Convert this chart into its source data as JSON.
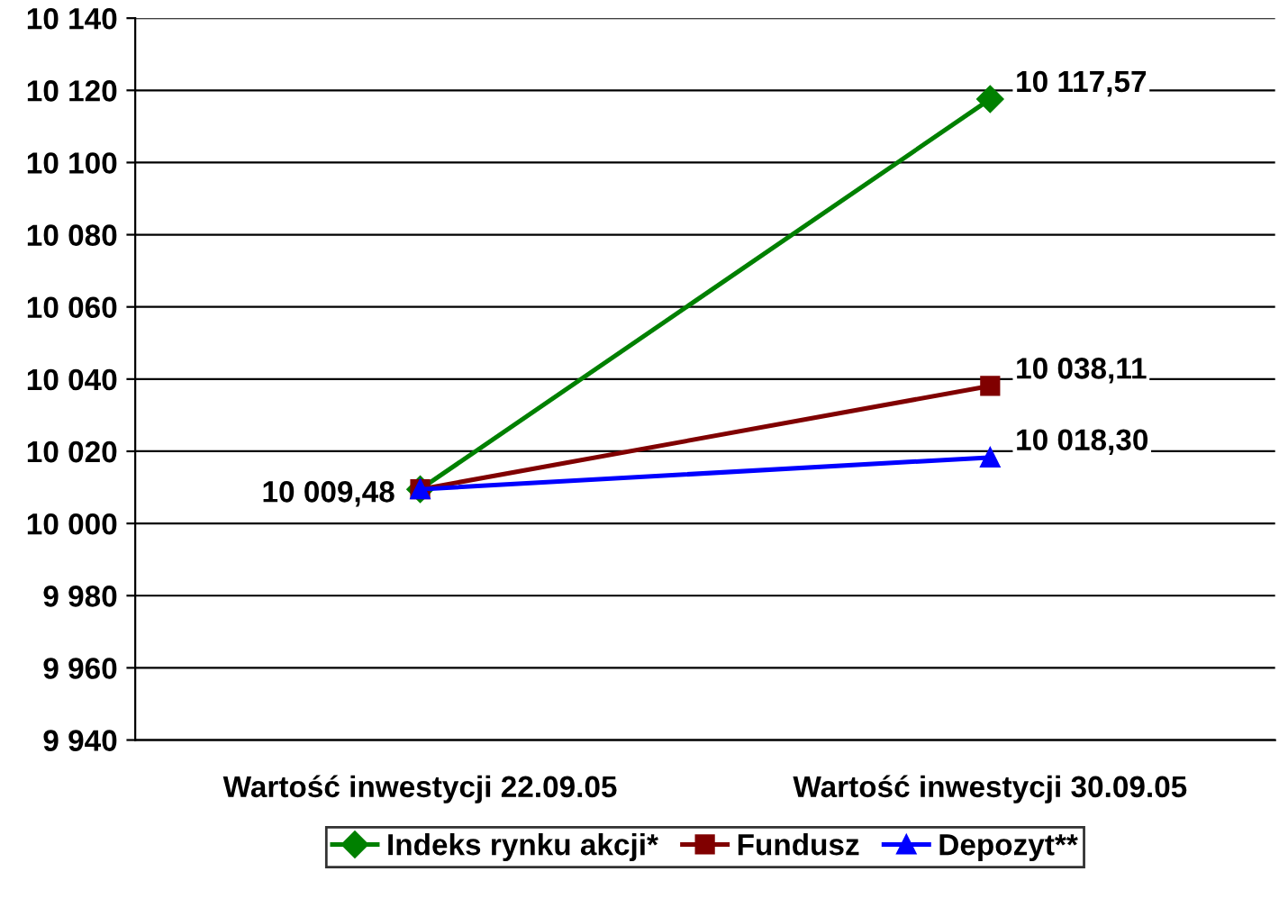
{
  "chart_data": {
    "type": "line",
    "categories": [
      "Wartość inwestycji 22.09.05",
      "Wartość inwestycji 30.09.05"
    ],
    "series": [
      {
        "name": "Indeks rynku akcji*",
        "color": "#008000",
        "marker": "diamond",
        "values": [
          10009.48,
          10117.57
        ],
        "value_labels": [
          null,
          "10 117,57"
        ]
      },
      {
        "name": "Fundusz",
        "color": "#800000",
        "marker": "square",
        "values": [
          10009.48,
          10038.11
        ],
        "value_labels": [
          "10 009,48",
          "10 038,11"
        ]
      },
      {
        "name": "Depozyt**",
        "color": "#0000ff",
        "marker": "triangle",
        "values": [
          10009.48,
          10018.3
        ],
        "value_labels": [
          null,
          "10 018,30"
        ]
      }
    ],
    "ylim": [
      9940,
      10140
    ],
    "yticks": [
      {
        "value": 9940,
        "label": "9 940"
      },
      {
        "value": 9960,
        "label": "9 960"
      },
      {
        "value": 9980,
        "label": "9 980"
      },
      {
        "value": 10000,
        "label": "10 000"
      },
      {
        "value": 10020,
        "label": "10 020"
      },
      {
        "value": 10040,
        "label": "10 040"
      },
      {
        "value": 10060,
        "label": "10 060"
      },
      {
        "value": 10080,
        "label": "10 080"
      },
      {
        "value": 10100,
        "label": "10 100"
      },
      {
        "value": 10120,
        "label": "10 120"
      },
      {
        "value": 10140,
        "label": "10 140"
      }
    ],
    "grid": "y",
    "legend": "bottom"
  }
}
